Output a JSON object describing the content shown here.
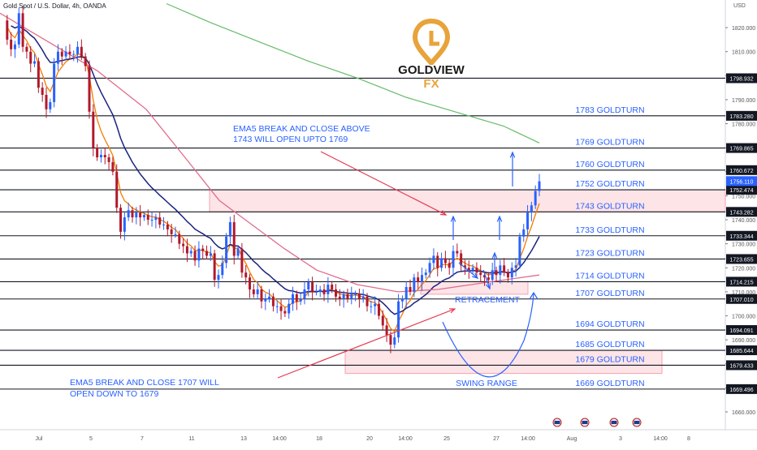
{
  "header": {
    "symbol_line": "Gold Spot / U.S. Dollar, 4h, OANDA",
    "currency": "USD"
  },
  "logo": {
    "brand": "GOLDVIEW",
    "suffix": "FX"
  },
  "colors": {
    "up_candle": "#2962ff",
    "down_candle": "#b2182b",
    "ema5": "#f57c00",
    "ema_blue": "#1a237e",
    "ema_pink": "#e06c8a",
    "ema_green": "#66bb6a",
    "annotation_text": "#2962ff",
    "zone_fill": "#fde4e7",
    "zone_stroke": "#f4a3b0",
    "level_line": "#131722",
    "logo_gold": "#e8a33a"
  },
  "chart_data": {
    "type": "candlestick",
    "title": "Gold Spot / U.S. Dollar, 4h, OANDA",
    "ylim": [
      1656,
      1828
    ],
    "y_ticks": [
      1660,
      1670,
      1680,
      1690,
      1700,
      1710,
      1720,
      1730,
      1740,
      1750,
      1760,
      1770,
      1780,
      1790,
      1800,
      1810,
      1820
    ],
    "y_tick_labels": [
      "1660.000",
      "1670.000",
      "1680.000",
      "1690.000",
      "1700.000",
      "1710.000",
      "1720.000",
      "1730.000",
      "1740.000",
      "1750.000",
      "1760.000",
      "1770.000",
      "1780.000",
      "1790.000",
      "1800.000",
      "1810.000",
      "1820.000"
    ],
    "x_ticks": [
      "Jul",
      "5",
      "7",
      "11",
      "13",
      "14:00",
      "18",
      "20",
      "14:00",
      "25",
      "27",
      "14:00",
      "Aug",
      "3",
      "14:00",
      "8"
    ],
    "price_levels": [
      {
        "value": 1798.932,
        "label": "1798.932"
      },
      {
        "value": 1783.28,
        "label": "1783.280",
        "goldturn": "1783 GOLDTURN"
      },
      {
        "value": 1769.865,
        "label": "1769.865",
        "goldturn": "1769 GOLDTURN"
      },
      {
        "value": 1760.672,
        "label": "1760.672",
        "goldturn": "1760 GOLDTURN"
      },
      {
        "value": 1752.474,
        "label": "1752.474",
        "goldturn": "1752 GOLDTURN"
      },
      {
        "value": 1743.282,
        "label": "1743.282",
        "goldturn": "1743 GOLDTURN"
      },
      {
        "value": 1733.344,
        "label": "1733.344",
        "goldturn": "1733 GOLDTURN"
      },
      {
        "value": 1723.655,
        "label": "1723.655",
        "goldturn": "1723 GOLDTURN"
      },
      {
        "value": 1714.215,
        "label": "1714.215",
        "goldturn": "1714 GOLDTURN"
      },
      {
        "value": 1707.01,
        "label": "1707.010",
        "goldturn": "1707 GOLDTURN"
      },
      {
        "value": 1694.091,
        "label": "1694.091",
        "goldturn": "1694 GOLDTURN"
      },
      {
        "value": 1685.644,
        "label": "1685.644",
        "goldturn": "1685 GOLDTURN"
      },
      {
        "value": 1679.433,
        "label": "1679.433",
        "goldturn": "1679 GOLDTURN"
      },
      {
        "value": 1669.496,
        "label": "1669.496",
        "goldturn": "1669 GOLDTURN"
      }
    ],
    "current_price": {
      "value": 1756.11,
      "label": "1756.110"
    },
    "annotations": [
      {
        "text": "EMA5 BREAK AND CLOSE ABOVE\n1743 WILL OPEN UPTO 1769"
      },
      {
        "text": "EMA5 BREAK AND CLOSE 1707 WILL\nOPEN DOWN TO 1679"
      },
      {
        "text": "RETRACEMENT"
      },
      {
        "text": "SWING RANGE"
      }
    ],
    "closes": [
      1823,
      1815,
      1811,
      1813,
      1826,
      1812,
      1810,
      1805,
      1806,
      1795,
      1792,
      1786,
      1789,
      1805,
      1810,
      1808,
      1810,
      1809,
      1809,
      1812,
      1808,
      1804,
      1785,
      1770,
      1766,
      1767,
      1766,
      1764,
      1760,
      1745,
      1735,
      1741,
      1744,
      1741,
      1743,
      1741,
      1742,
      1740,
      1740,
      1741,
      1738,
      1738,
      1736,
      1734,
      1734,
      1730,
      1729,
      1726,
      1727,
      1723,
      1728,
      1727,
      1725,
      1726,
      1715,
      1717,
      1722,
      1733,
      1739,
      1725,
      1728,
      1718,
      1716,
      1711,
      1709,
      1711,
      1706,
      1707,
      1708,
      1704,
      1704,
      1702,
      1701,
      1705,
      1709,
      1706,
      1707,
      1711,
      1714,
      1710,
      1710,
      1711,
      1709,
      1713,
      1711,
      1708,
      1707,
      1709,
      1707,
      1709,
      1709,
      1707,
      1708,
      1704,
      1704,
      1705,
      1700,
      1696,
      1692,
      1688,
      1691,
      1706,
      1707,
      1712,
      1710,
      1716,
      1714,
      1717,
      1718,
      1722,
      1725,
      1720,
      1724,
      1722,
      1720,
      1727,
      1726,
      1721,
      1720,
      1719,
      1720,
      1718,
      1717,
      1716,
      1715,
      1719,
      1717,
      1721,
      1718,
      1716,
      1720,
      1721,
      1733,
      1736,
      1743,
      1746,
      1752,
      1756
    ]
  }
}
